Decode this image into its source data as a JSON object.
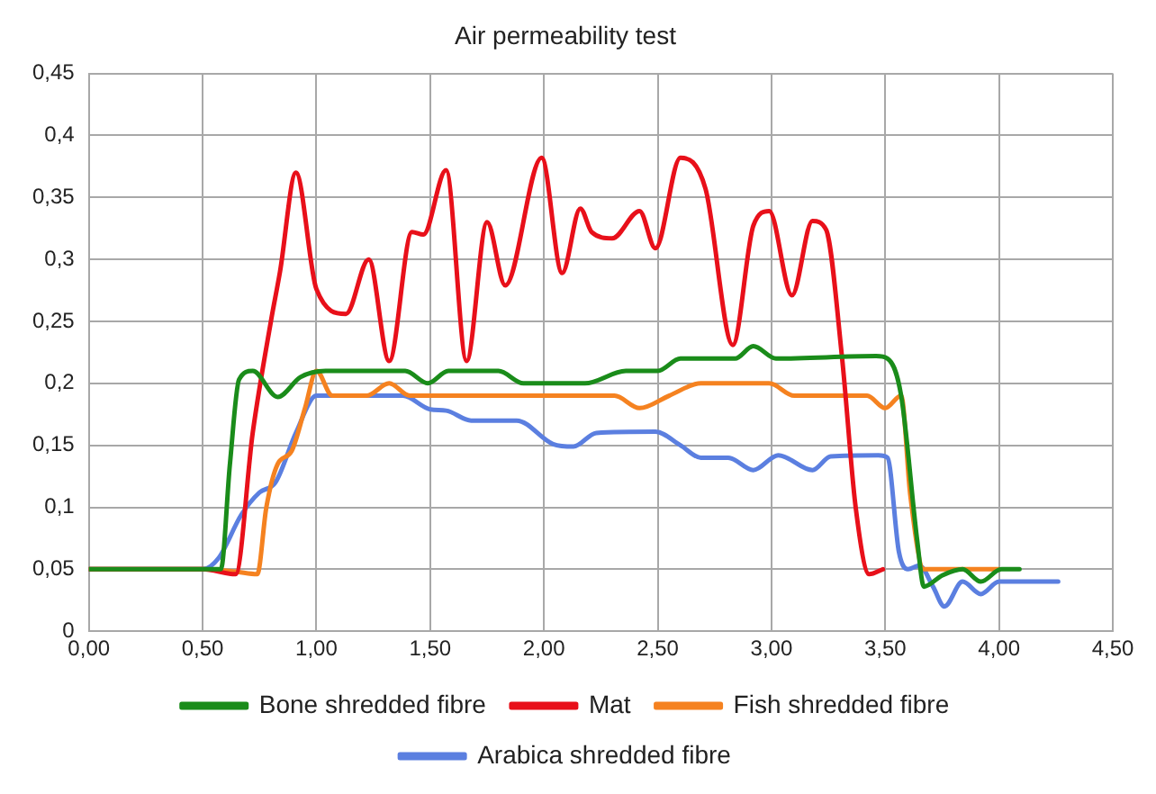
{
  "chart_data": {
    "type": "line",
    "title": "Air permeability test",
    "grid": true,
    "legend": "bottom",
    "marker": "none",
    "line_style": "solid",
    "xlim": [
      0,
      4.5
    ],
    "xticks": [
      {
        "value": 0,
        "label": "0,00"
      },
      {
        "value": 0.5,
        "label": "0,50"
      },
      {
        "value": 1,
        "label": "1,00"
      },
      {
        "value": 1.5,
        "label": "1,50"
      },
      {
        "value": 2,
        "label": "2,00"
      },
      {
        "value": 2.5,
        "label": "2,50"
      },
      {
        "value": 3,
        "label": "3,00"
      },
      {
        "value": 3.5,
        "label": "3,50"
      },
      {
        "value": 4,
        "label": "4,00"
      },
      {
        "value": 4.5,
        "label": "4,50"
      }
    ],
    "ylim": [
      0,
      0.45
    ],
    "yticks": [
      0,
      {
        "value": 0.05,
        "label": "0,05"
      },
      {
        "value": 0.1,
        "label": "0,1"
      },
      {
        "value": 0.15,
        "label": "0,15"
      },
      {
        "value": 0.2,
        "label": "0,2"
      },
      {
        "value": 0.25,
        "label": "0,25"
      },
      {
        "value": 0.3,
        "label": "0,3"
      },
      {
        "value": 0.35,
        "label": "0,35"
      },
      {
        "value": 0.4,
        "label": "0,4"
      },
      {
        "value": 0.45,
        "label": "0,45"
      }
    ],
    "series": [
      {
        "name": "Bone shredded fibre",
        "color": "#1a8c1a",
        "x": [
          0,
          0.58,
          0.62,
          0.66,
          0.72,
          0.83,
          0.93,
          1.04,
          1.39,
          1.49,
          1.58,
          1.8,
          1.91,
          2.18,
          2.36,
          2.5,
          2.6,
          2.84,
          2.92,
          3.02,
          3.46,
          3.51,
          3.57,
          3.64,
          3.67,
          3.75,
          3.84,
          3.92,
          4.01,
          4.09
        ],
        "values": [
          0.05,
          0.05,
          0.135,
          0.203,
          0.21,
          0.189,
          0.205,
          0.21,
          0.21,
          0.2,
          0.21,
          0.21,
          0.2,
          0.2,
          0.21,
          0.21,
          0.22,
          0.22,
          0.23,
          0.22,
          0.222,
          0.22,
          0.19,
          0.074,
          0.036,
          0.045,
          0.05,
          0.04,
          0.05,
          0.05
        ]
      },
      {
        "name": "Mat",
        "color": "#e8101a",
        "x": [
          0,
          0.5,
          0.645,
          0.72,
          0.8,
          0.84,
          0.91,
          1.0,
          1.13,
          1.23,
          1.32,
          1.42,
          1.47,
          1.57,
          1.66,
          1.75,
          1.83,
          1.99,
          2.08,
          2.16,
          2.21,
          2.3,
          2.42,
          2.49,
          2.6,
          2.71,
          2.83,
          2.92,
          2.99,
          3.09,
          3.18,
          3.24,
          3.31,
          3.37,
          3.43,
          3.49
        ],
        "values": [
          0.05,
          0.05,
          0.046,
          0.16,
          0.25,
          0.29,
          0.37,
          0.276,
          0.256,
          0.3,
          0.218,
          0.322,
          0.32,
          0.372,
          0.218,
          0.33,
          0.279,
          0.382,
          0.289,
          0.341,
          0.322,
          0.317,
          0.339,
          0.309,
          0.382,
          0.357,
          0.231,
          0.327,
          0.339,
          0.271,
          0.331,
          0.324,
          0.221,
          0.1,
          0.046,
          0.05
        ]
      },
      {
        "name": "Fish shredded fibre",
        "color": "#f58220",
        "x": [
          0,
          0.5,
          0.645,
          0.74,
          0.78,
          0.83,
          0.89,
          0.95,
          1.0,
          1.07,
          1.22,
          1.32,
          1.41,
          2.31,
          2.42,
          2.55,
          2.69,
          2.99,
          3.1,
          3.42,
          3.5,
          3.57,
          3.61,
          3.67,
          4.0
        ],
        "values": [
          0.05,
          0.05,
          0.048,
          0.046,
          0.1,
          0.135,
          0.145,
          0.18,
          0.21,
          0.19,
          0.19,
          0.2,
          0.19,
          0.19,
          0.18,
          0.19,
          0.2,
          0.2,
          0.19,
          0.19,
          0.18,
          0.19,
          0.11,
          0.05,
          0.05
        ]
      },
      {
        "name": "Arabica shredded fibre",
        "color": "#5b7fe0",
        "x": [
          0,
          0.5,
          0.57,
          0.67,
          0.75,
          0.82,
          0.91,
          1.0,
          1.38,
          1.5,
          1.57,
          1.68,
          1.88,
          2.04,
          2.13,
          2.23,
          2.49,
          2.6,
          2.69,
          2.81,
          2.92,
          3.03,
          3.18,
          3.26,
          3.47,
          3.51,
          3.56,
          3.6,
          3.65,
          3.71,
          3.76,
          3.84,
          3.92,
          4.0,
          4.26
        ],
        "values": [
          0.05,
          0.05,
          0.059,
          0.094,
          0.112,
          0.12,
          0.16,
          0.19,
          0.19,
          0.179,
          0.178,
          0.17,
          0.17,
          0.151,
          0.149,
          0.16,
          0.161,
          0.15,
          0.14,
          0.14,
          0.13,
          0.142,
          0.13,
          0.141,
          0.142,
          0.14,
          0.064,
          0.05,
          0.053,
          0.036,
          0.02,
          0.04,
          0.03,
          0.04,
          0.04
        ]
      }
    ]
  }
}
